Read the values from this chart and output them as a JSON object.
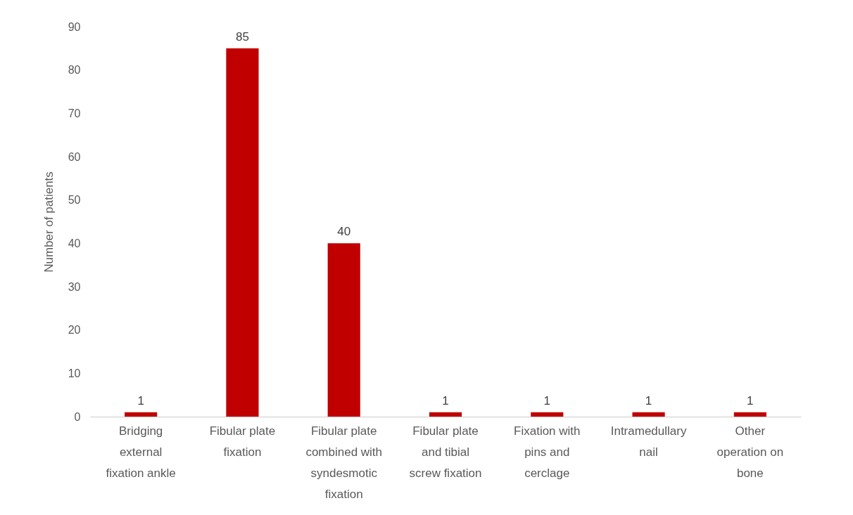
{
  "chart_data": {
    "type": "bar",
    "ylabel": "Number of patients",
    "categories": [
      "Bridging external fixation ankle",
      "Fibular plate fixation",
      "Fibular plate combined with syndesmotic fixation",
      "Fibular plate and tibial screw fixation",
      "Fixation with pins and cerclage",
      "Intramedullary nail",
      "Other operation on bone"
    ],
    "values": [
      1,
      85,
      40,
      1,
      1,
      1,
      1
    ],
    "color": "#c00000",
    "ylim": [
      0,
      90
    ],
    "yticks": [
      0,
      10,
      20,
      30,
      40,
      50,
      60,
      70,
      80,
      90
    ],
    "data_labels": true,
    "grid": false
  }
}
